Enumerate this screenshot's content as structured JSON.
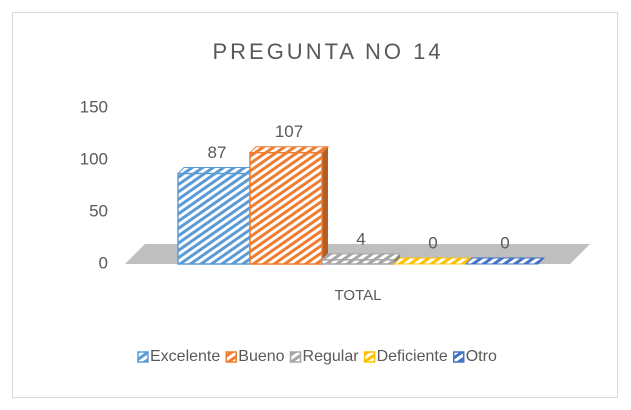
{
  "chart_data": {
    "type": "bar3d",
    "title": "PREGUNTA NO 14",
    "categories": [
      "TOTAL"
    ],
    "series": [
      {
        "name": "Excelente",
        "color": "#5b9bd5",
        "values": [
          87
        ]
      },
      {
        "name": "Bueno",
        "color": "#ed7d31",
        "values": [
          107
        ]
      },
      {
        "name": "Regular",
        "color": "#a5a5a5",
        "values": [
          4
        ]
      },
      {
        "name": "Deficiente",
        "color": "#ffc000",
        "values": [
          0
        ]
      },
      {
        "name": "Otro",
        "color": "#4472c4",
        "values": [
          0
        ]
      }
    ],
    "ylim": [
      0,
      150
    ],
    "yticks": [
      0,
      50,
      100,
      150
    ],
    "grid": false,
    "legend": "bottom"
  }
}
